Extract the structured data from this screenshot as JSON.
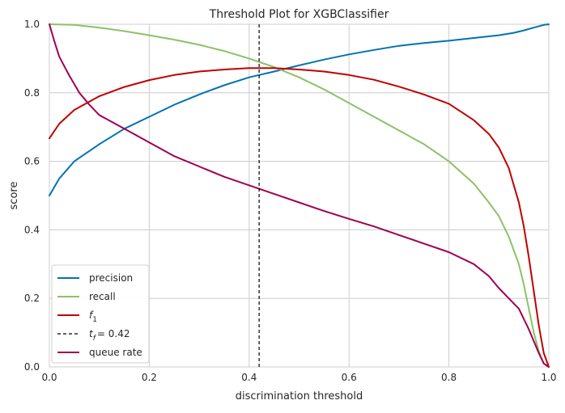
{
  "chart_data": {
    "type": "line",
    "title": "Threshold Plot for XGBClassifier",
    "xlabel": "discrimination threshold",
    "ylabel": "score",
    "xlim": [
      0,
      1
    ],
    "ylim": [
      0,
      1
    ],
    "xticks": [
      "0.0",
      "0.2",
      "0.4",
      "0.6",
      "0.8",
      "1.0"
    ],
    "yticks": [
      "0.0",
      "0.2",
      "0.4",
      "0.6",
      "0.8",
      "1.0"
    ],
    "grid": true,
    "legend_position": "lower-left",
    "threshold_line": {
      "x": 0.42,
      "label_prefix": "t",
      "label_sub": "f",
      "label_value": "= 0.42",
      "style": "dashed",
      "color": "#000000"
    },
    "series": [
      {
        "name": "precision",
        "color": "#0072b2",
        "x": [
          0.0,
          0.02,
          0.05,
          0.1,
          0.15,
          0.2,
          0.25,
          0.3,
          0.35,
          0.4,
          0.42,
          0.45,
          0.5,
          0.55,
          0.6,
          0.65,
          0.7,
          0.75,
          0.8,
          0.85,
          0.9,
          0.93,
          0.95,
          0.97,
          0.99,
          1.0
        ],
        "y": [
          0.5,
          0.55,
          0.6,
          0.65,
          0.695,
          0.73,
          0.765,
          0.795,
          0.822,
          0.845,
          0.852,
          0.862,
          0.88,
          0.897,
          0.912,
          0.925,
          0.937,
          0.945,
          0.952,
          0.96,
          0.968,
          0.975,
          0.982,
          0.99,
          0.998,
          1.0
        ]
      },
      {
        "name": "recall",
        "color": "#8cc168",
        "x": [
          0.0,
          0.05,
          0.1,
          0.15,
          0.2,
          0.25,
          0.3,
          0.35,
          0.4,
          0.45,
          0.5,
          0.55,
          0.6,
          0.65,
          0.7,
          0.75,
          0.8,
          0.85,
          0.88,
          0.9,
          0.92,
          0.94,
          0.95,
          0.96,
          0.97,
          0.98,
          0.99,
          1.0
        ],
        "y": [
          1.0,
          0.998,
          0.99,
          0.98,
          0.968,
          0.955,
          0.94,
          0.922,
          0.9,
          0.875,
          0.845,
          0.81,
          0.77,
          0.73,
          0.69,
          0.65,
          0.6,
          0.535,
          0.48,
          0.44,
          0.38,
          0.3,
          0.24,
          0.17,
          0.1,
          0.045,
          0.01,
          0.0
        ]
      },
      {
        "name": "f1",
        "label_base": "f",
        "label_sub": "1",
        "color": "#c00000",
        "x": [
          0.0,
          0.02,
          0.05,
          0.1,
          0.15,
          0.2,
          0.25,
          0.3,
          0.35,
          0.4,
          0.45,
          0.5,
          0.55,
          0.6,
          0.65,
          0.7,
          0.75,
          0.8,
          0.85,
          0.88,
          0.9,
          0.92,
          0.94,
          0.95,
          0.96,
          0.97,
          0.98,
          0.99,
          1.0
        ],
        "y": [
          0.667,
          0.71,
          0.75,
          0.79,
          0.817,
          0.837,
          0.852,
          0.862,
          0.868,
          0.872,
          0.872,
          0.868,
          0.862,
          0.852,
          0.838,
          0.818,
          0.795,
          0.768,
          0.72,
          0.68,
          0.64,
          0.58,
          0.48,
          0.41,
          0.32,
          0.22,
          0.12,
          0.04,
          0.0
        ]
      },
      {
        "name": "queue rate",
        "color": "#a0004e",
        "x": [
          0.0,
          0.01,
          0.02,
          0.04,
          0.06,
          0.08,
          0.1,
          0.15,
          0.2,
          0.25,
          0.3,
          0.35,
          0.4,
          0.45,
          0.5,
          0.55,
          0.6,
          0.65,
          0.7,
          0.75,
          0.8,
          0.85,
          0.88,
          0.9,
          0.92,
          0.94,
          0.95,
          0.96,
          0.97,
          0.98,
          0.99,
          1.0
        ],
        "y": [
          1.0,
          0.95,
          0.905,
          0.85,
          0.8,
          0.765,
          0.735,
          0.695,
          0.655,
          0.615,
          0.585,
          0.555,
          0.53,
          0.505,
          0.48,
          0.455,
          0.432,
          0.41,
          0.385,
          0.36,
          0.335,
          0.3,
          0.265,
          0.23,
          0.2,
          0.17,
          0.14,
          0.11,
          0.075,
          0.04,
          0.01,
          0.0
        ]
      }
    ]
  }
}
